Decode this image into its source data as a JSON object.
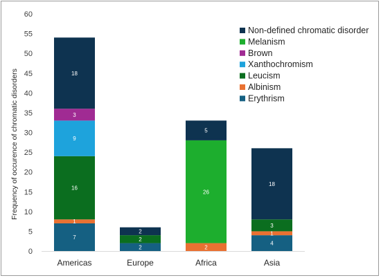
{
  "chart_data": {
    "type": "bar",
    "stacked": true,
    "title": "",
    "xlabel": "",
    "ylabel": "Frequency of occurence of chromatic disorders",
    "ylim": [
      0,
      60
    ],
    "yticks": [
      0,
      5,
      10,
      15,
      20,
      25,
      30,
      35,
      40,
      45,
      50,
      55,
      60
    ],
    "grid": false,
    "legend_position": "top-right",
    "categories": [
      "Americas",
      "Europe",
      "Africa",
      "Asia"
    ],
    "series": [
      {
        "name": "Erythrism",
        "color": "#156082",
        "values": [
          7,
          2,
          0,
          4
        ]
      },
      {
        "name": "Albinism",
        "color": "#E97132",
        "values": [
          1,
          0,
          2,
          1
        ]
      },
      {
        "name": "Leucism",
        "color": "#0B6E1F",
        "values": [
          16,
          2,
          0,
          3
        ]
      },
      {
        "name": "Xanthochromism",
        "color": "#1EA3DC",
        "values": [
          9,
          0,
          0,
          0
        ]
      },
      {
        "name": "Brown",
        "color": "#A02B93",
        "values": [
          3,
          0,
          0,
          0
        ]
      },
      {
        "name": "Melanism",
        "color": "#1DAE2E",
        "values": [
          0,
          0,
          26,
          0
        ]
      },
      {
        "name": "Non-defined chromatic disorder",
        "color": "#0E3350",
        "values": [
          18,
          2,
          5,
          18
        ]
      }
    ],
    "legend_order": [
      "Non-defined chromatic disorder",
      "Melanism",
      "Brown",
      "Xanthochromism",
      "Leucism",
      "Albinism",
      "Erythrism"
    ]
  }
}
